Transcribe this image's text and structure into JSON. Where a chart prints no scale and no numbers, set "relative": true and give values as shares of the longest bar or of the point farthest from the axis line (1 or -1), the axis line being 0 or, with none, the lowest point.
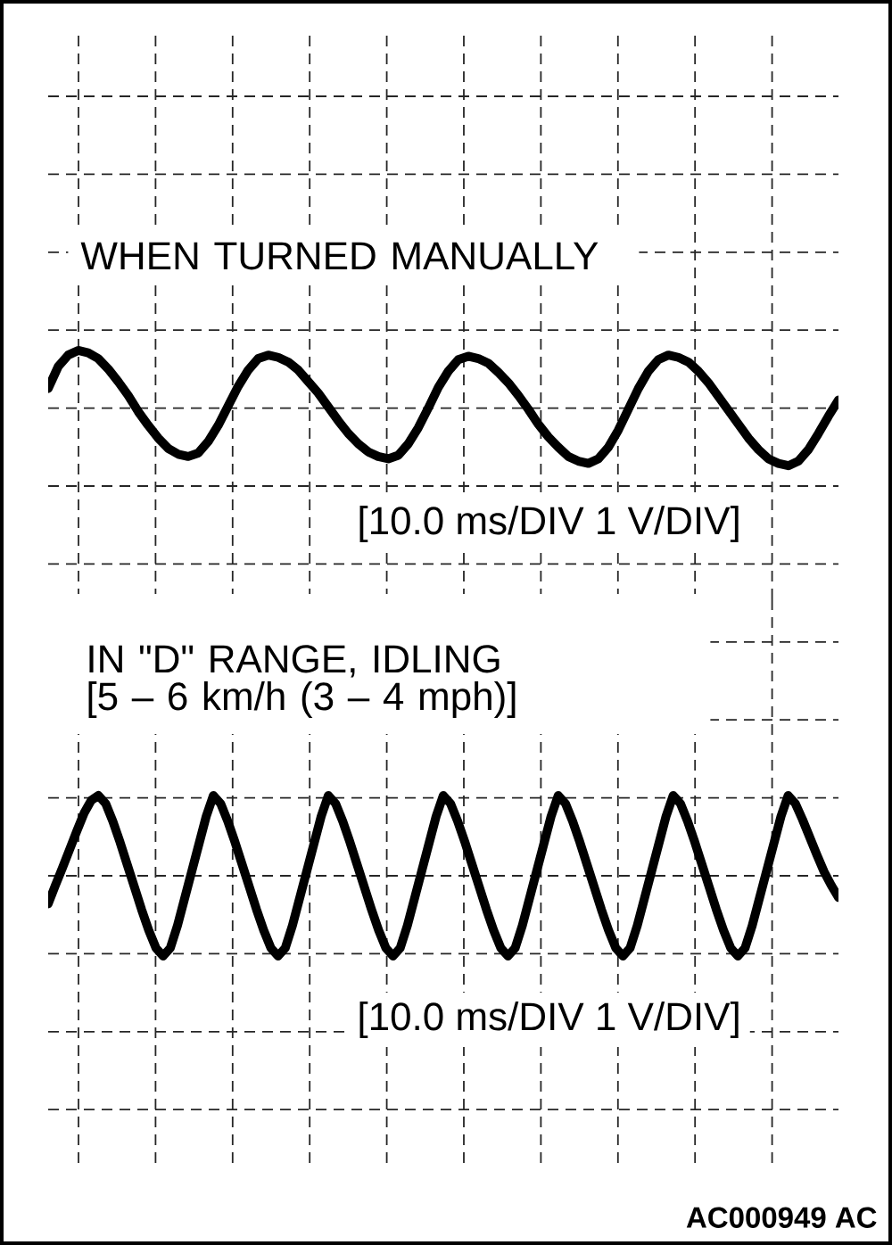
{
  "chart_data": [
    {
      "type": "line",
      "title": "WHEN TURNED MANUALLY",
      "annotations": [
        "[10.0 ms/DIV 1 V/DIV]"
      ],
      "relative": true,
      "grid": true,
      "marker": "none",
      "line_style": "solid",
      "color": "#000000",
      "categories": [
        null,
        null,
        null,
        null,
        null,
        null,
        null,
        null,
        null,
        null,
        null,
        null,
        null,
        null,
        null,
        null,
        null,
        null,
        null,
        null,
        null,
        null,
        null,
        null,
        null,
        null,
        null,
        null,
        null,
        null,
        null,
        null,
        null,
        null,
        null,
        null,
        null,
        null,
        null,
        null,
        null,
        null,
        null,
        null,
        null,
        null,
        null,
        null,
        null,
        null,
        null,
        null,
        null,
        null,
        null,
        null,
        null,
        null,
        null,
        null,
        null,
        null,
        null,
        null,
        null,
        null,
        null,
        null,
        null,
        null,
        null,
        null,
        null,
        null,
        null,
        null,
        null,
        null,
        null,
        null
      ],
      "values": [
        0.34,
        0.72,
        0.92,
        1.0,
        0.96,
        0.86,
        0.68,
        0.46,
        0.22,
        -0.06,
        -0.3,
        -0.52,
        -0.7,
        -0.8,
        -0.84,
        -0.78,
        -0.58,
        -0.3,
        0.04,
        0.38,
        0.66,
        0.86,
        0.92,
        0.88,
        0.8,
        0.66,
        0.46,
        0.26,
        0.02,
        -0.22,
        -0.44,
        -0.62,
        -0.76,
        -0.84,
        -0.88,
        -0.82,
        -0.62,
        -0.34,
        0.0,
        0.36,
        0.64,
        0.84,
        0.9,
        0.86,
        0.78,
        0.62,
        0.44,
        0.22,
        -0.02,
        -0.28,
        -0.5,
        -0.68,
        -0.84,
        -0.92,
        -0.96,
        -0.88,
        -0.68,
        -0.38,
        -0.02,
        0.34,
        0.64,
        0.84,
        0.92,
        0.88,
        0.8,
        0.64,
        0.44,
        0.2,
        -0.04,
        -0.28,
        -0.52,
        -0.72,
        -0.88,
        -0.96,
        -1.0,
        -0.92,
        -0.72,
        -0.44,
        -0.14,
        0.14
      ]
    },
    {
      "type": "line",
      "title": "IN \"D\" RANGE, IDLING",
      "subtitle": "[5 – 6 km/h (3 – 4 mph)]",
      "annotations": [
        "[10.0 ms/DIV 1 V/DIV]",
        "AC000949 AC"
      ],
      "relative": true,
      "grid": true,
      "marker": "none",
      "line_style": "solid",
      "color": "#000000",
      "categories": [
        null,
        null,
        null,
        null,
        null,
        null,
        null,
        null,
        null,
        null,
        null,
        null,
        null,
        null,
        null,
        null,
        null,
        null,
        null,
        null,
        null,
        null,
        null,
        null,
        null,
        null,
        null,
        null,
        null,
        null,
        null,
        null,
        null,
        null,
        null,
        null,
        null,
        null,
        null,
        null,
        null,
        null,
        null,
        null,
        null,
        null,
        null,
        null,
        null,
        null,
        null,
        null,
        null,
        null,
        null,
        null,
        null,
        null,
        null,
        null,
        null,
        null,
        null,
        null,
        null,
        null,
        null,
        null,
        null,
        null,
        null,
        null,
        null,
        null,
        null,
        null,
        null,
        null,
        null,
        null,
        null,
        null,
        null,
        null,
        null,
        null,
        null,
        null,
        null,
        null,
        null,
        null,
        null,
        null,
        null,
        null,
        null,
        null,
        null,
        null,
        null,
        null,
        null,
        null,
        null,
        null,
        null,
        null,
        null,
        null,
        null
      ],
      "values": [
        -0.35,
        -0.12,
        0.1,
        0.33,
        0.56,
        0.78,
        0.94,
        1.0,
        0.9,
        0.68,
        0.42,
        0.14,
        -0.14,
        -0.42,
        -0.68,
        -0.9,
        -1.0,
        -0.9,
        -0.62,
        -0.28,
        0.06,
        0.4,
        0.74,
        1.0,
        0.9,
        0.68,
        0.42,
        0.14,
        -0.14,
        -0.42,
        -0.68,
        -0.9,
        -1.0,
        -0.9,
        -0.62,
        -0.28,
        0.06,
        0.4,
        0.74,
        1.0,
        0.9,
        0.68,
        0.42,
        0.14,
        -0.14,
        -0.42,
        -0.68,
        -0.9,
        -1.0,
        -0.9,
        -0.62,
        -0.28,
        0.06,
        0.4,
        0.74,
        1.0,
        0.9,
        0.68,
        0.42,
        0.14,
        -0.14,
        -0.42,
        -0.68,
        -0.9,
        -1.0,
        -0.9,
        -0.62,
        -0.28,
        0.06,
        0.4,
        0.74,
        1.0,
        0.9,
        0.68,
        0.42,
        0.14,
        -0.14,
        -0.42,
        -0.68,
        -0.9,
        -1.0,
        -0.9,
        -0.62,
        -0.28,
        0.06,
        0.4,
        0.74,
        1.0,
        0.9,
        0.68,
        0.42,
        0.14,
        -0.14,
        -0.42,
        -0.68,
        -0.9,
        -1.0,
        -0.9,
        -0.62,
        -0.28,
        0.06,
        0.4,
        0.74,
        1.0,
        0.9,
        0.7,
        0.48,
        0.26,
        0.05,
        -0.12,
        -0.27
      ]
    }
  ]
}
